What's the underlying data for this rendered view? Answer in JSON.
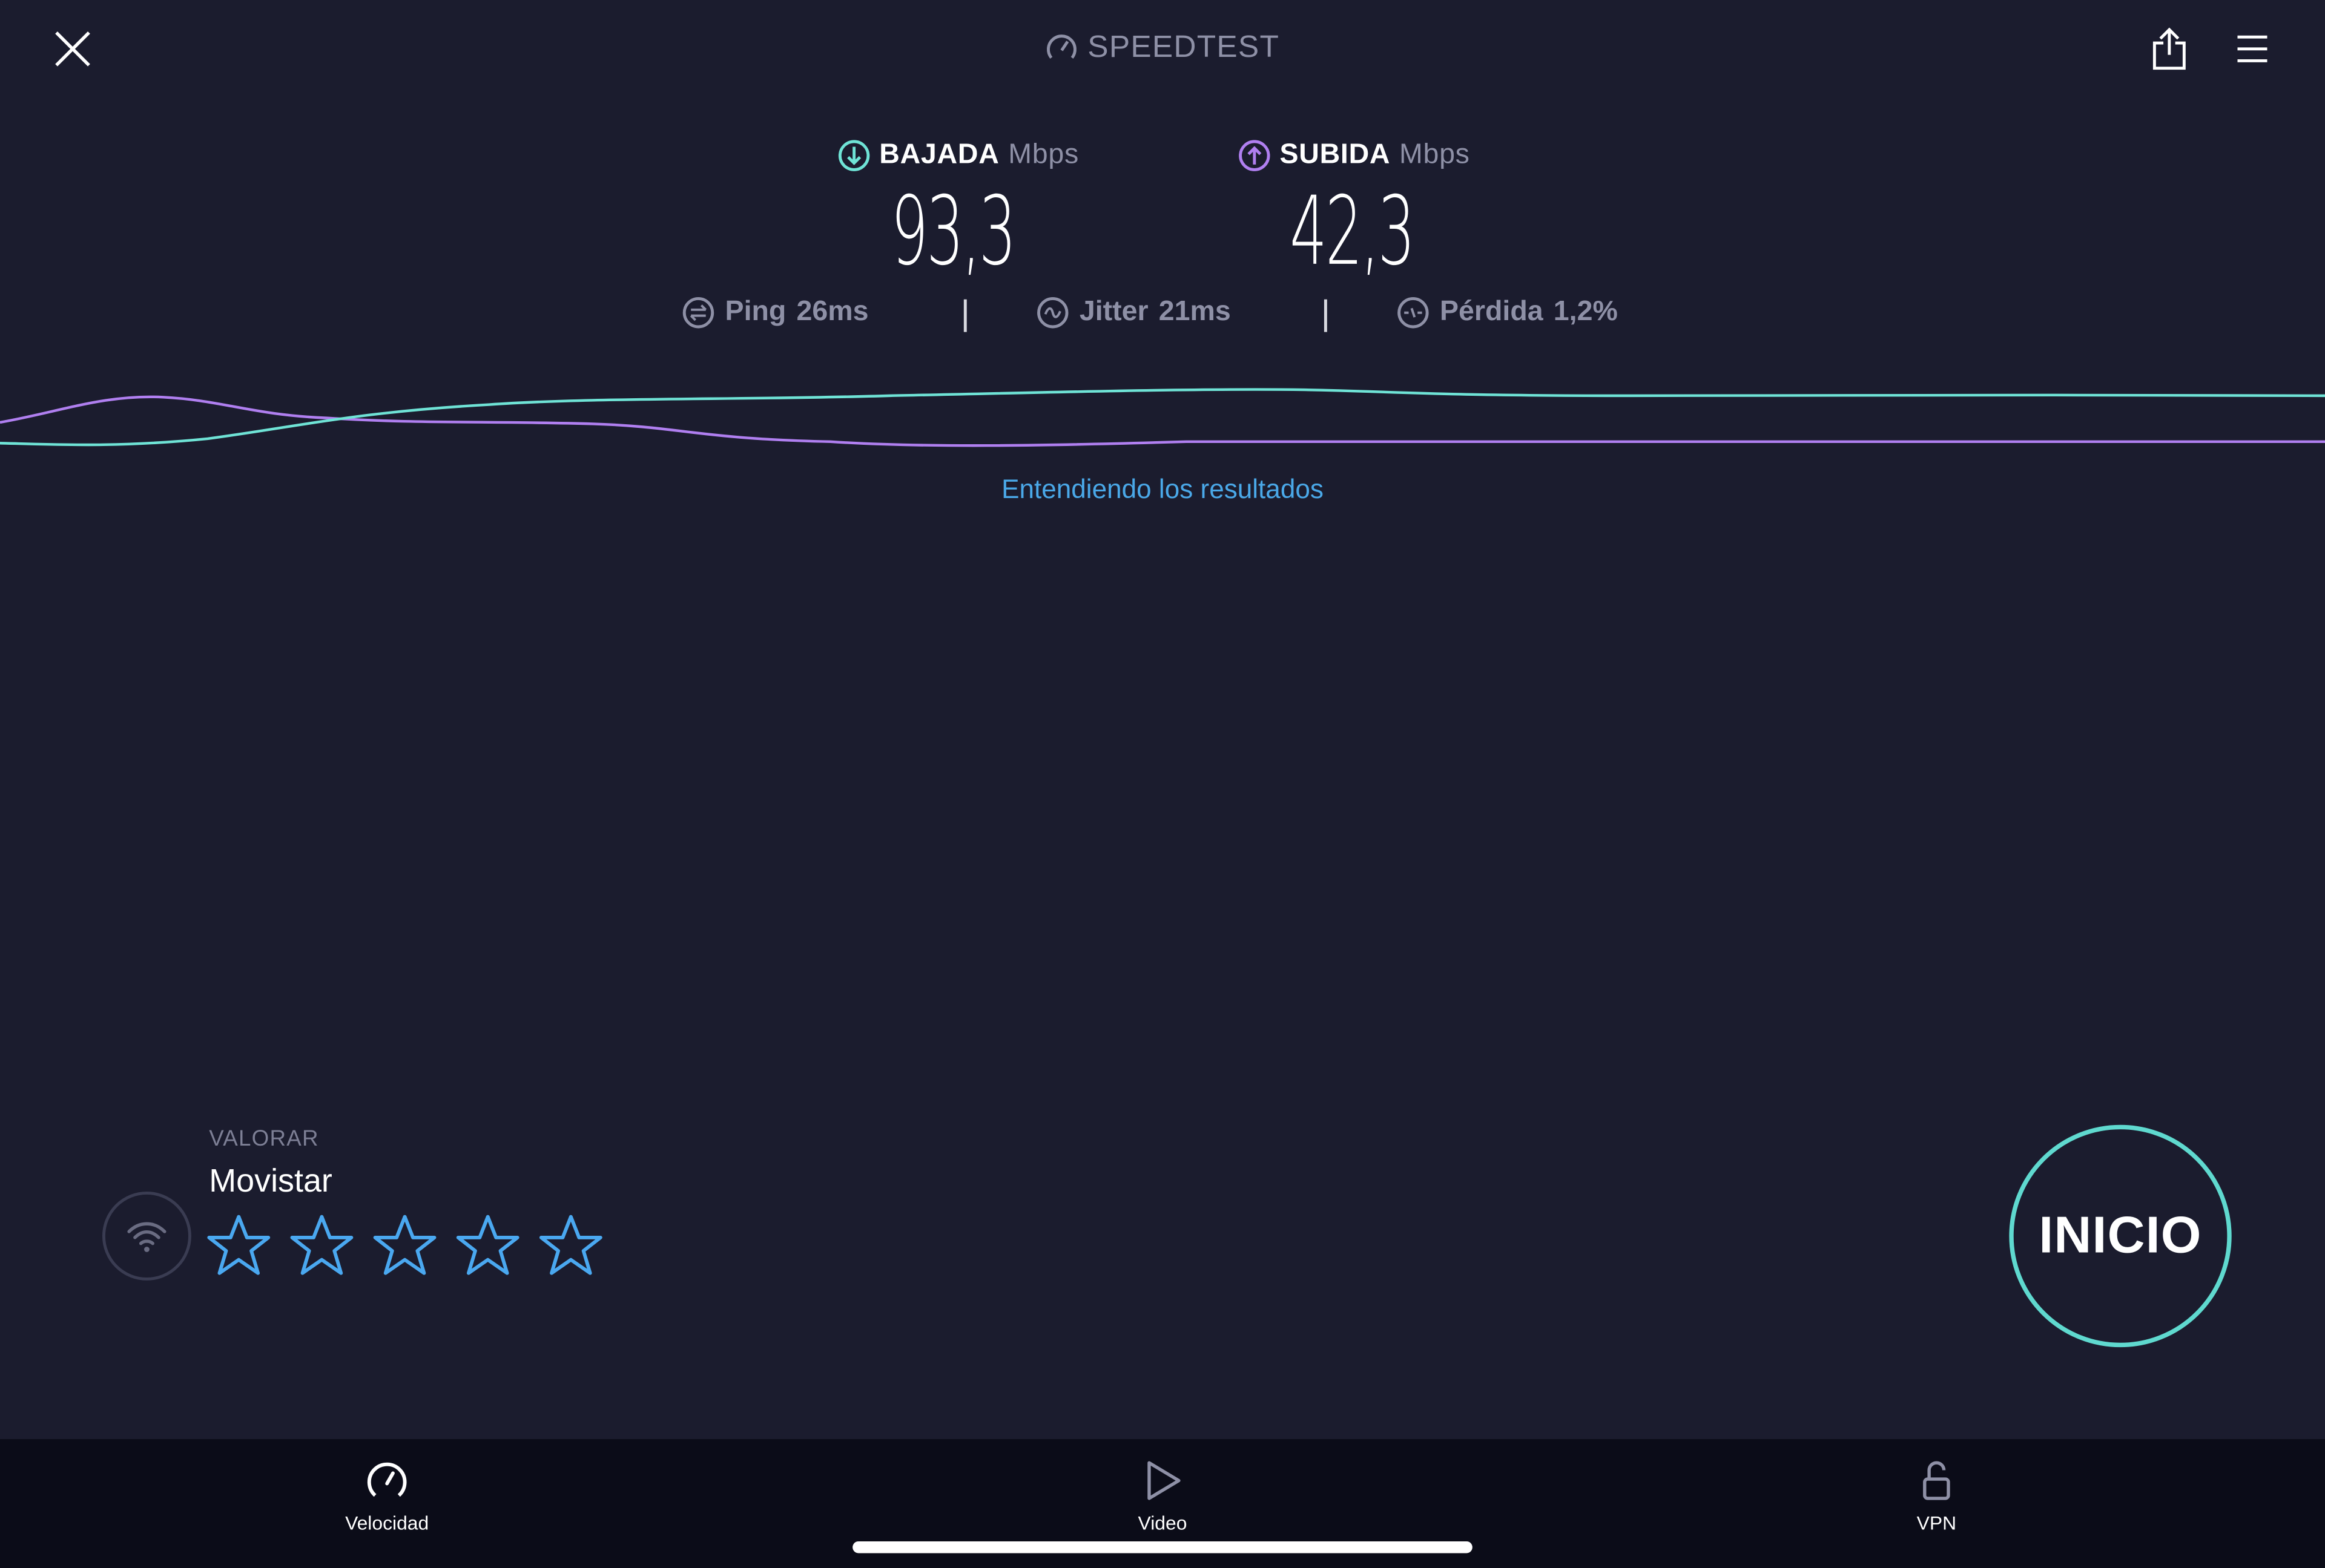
{
  "header": {
    "close_icon": "close-icon",
    "logo_text": "SPEEDTEST",
    "share_icon": "share-icon",
    "menu_icon": "hamburger-menu-icon"
  },
  "results": {
    "download": {
      "label": "BAJADA",
      "unit": "Mbps",
      "value": "93,3",
      "color": "#6fe3d6"
    },
    "upload": {
      "label": "SUBIDA",
      "unit": "Mbps",
      "value": "42,3",
      "color": "#b07ff0"
    },
    "ping": {
      "label": "Ping",
      "value": "26ms"
    },
    "jitter": {
      "label": "Jitter",
      "value": "21ms"
    },
    "loss": {
      "label": "Pérdida",
      "value": "1,2%"
    }
  },
  "link_text": "Entendiendo los resultados",
  "rating": {
    "label": "VALORAR",
    "provider": "Movistar",
    "max_stars": 5,
    "selected_stars": 0,
    "star_color": "#4aa8f0"
  },
  "start_button": "INICIO",
  "tabs": [
    {
      "label": "Velocidad",
      "icon": "speedometer-icon",
      "active": true
    },
    {
      "label": "Video",
      "icon": "play-icon",
      "active": false
    },
    {
      "label": "VPN",
      "icon": "unlock-icon",
      "active": false
    }
  ]
}
